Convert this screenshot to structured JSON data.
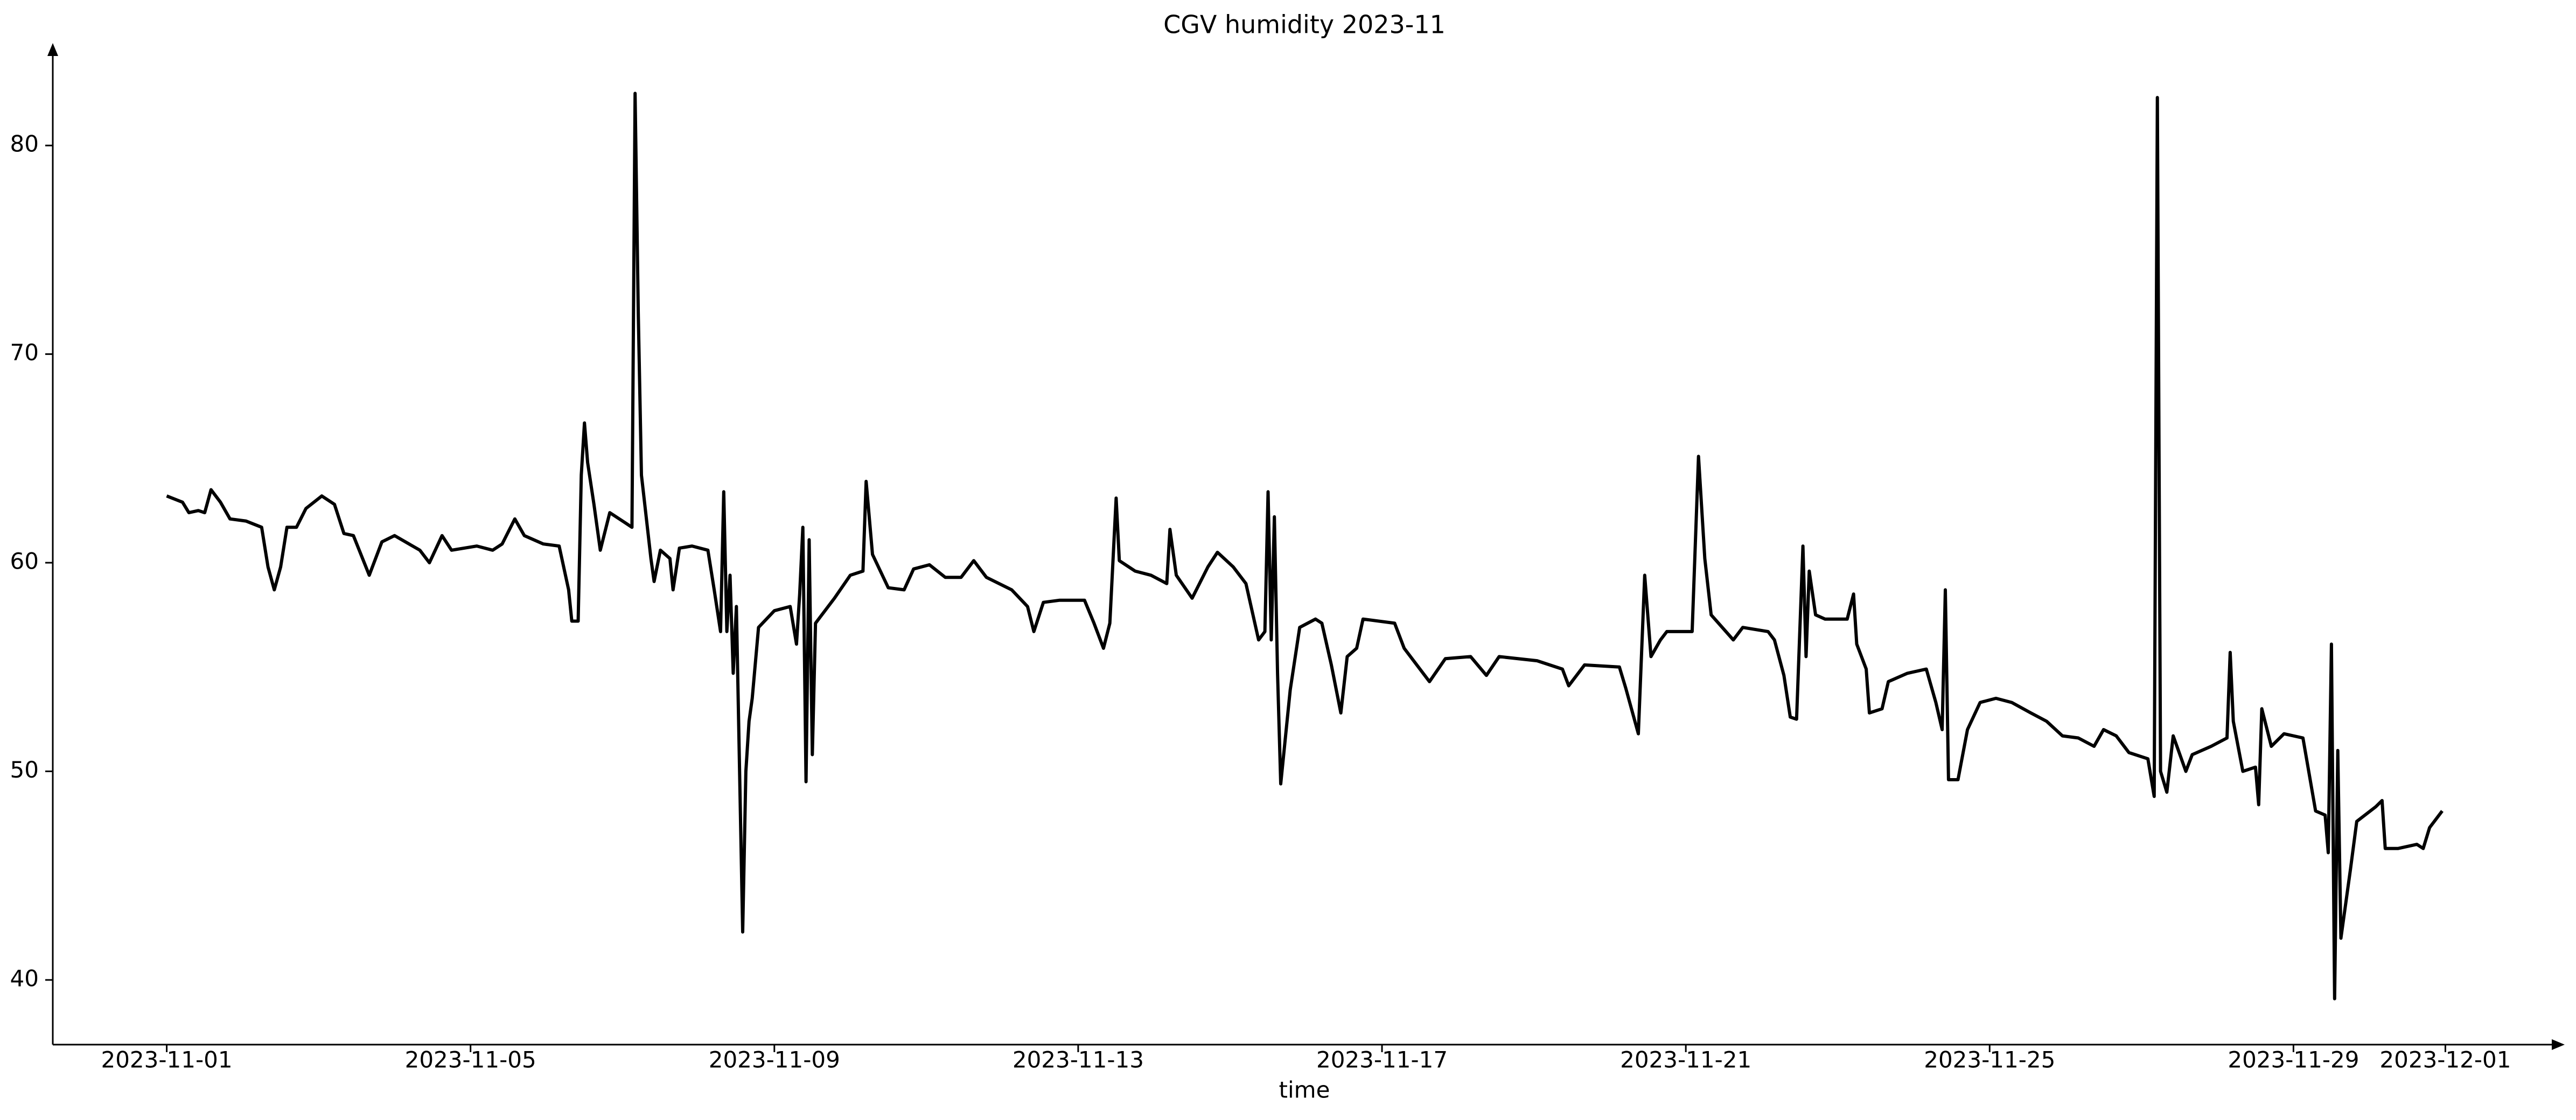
{
  "chart_data": {
    "type": "line",
    "title": "CGV humidity 2023-11",
    "x_label": "time",
    "color": "#000000",
    "xlim": [
      "2023-10-30 12:00",
      "2023-12-02 12:00"
    ],
    "ylim": [
      36.9,
      84.6
    ],
    "xticks": [
      "2023-11-01",
      "2023-11-05",
      "2023-11-09",
      "2023-11-13",
      "2023-11-17",
      "2023-11-21",
      "2023-11-25",
      "2023-11-29",
      "2023-12-01"
    ],
    "yticks": [
      40,
      50,
      60,
      70,
      80
    ],
    "grid": false,
    "x": [
      "2023-11-01 00:00",
      "2023-11-01 05:00",
      "2023-11-01 07:00",
      "2023-11-01 10:00",
      "2023-11-01 12:00",
      "2023-11-01 14:00",
      "2023-11-01 17:00",
      "2023-11-01 20:00",
      "2023-11-02 01:00",
      "2023-11-02 06:00",
      "2023-11-02 08:00",
      "2023-11-02 10:00",
      "2023-11-02 12:00",
      "2023-11-02 14:00",
      "2023-11-02 17:00",
      "2023-11-02 20:00",
      "2023-11-03 01:00",
      "2023-11-03 05:00",
      "2023-11-03 08:00",
      "2023-11-03 11:00",
      "2023-11-03 16:00",
      "2023-11-03 20:00",
      "2023-11-04 00:00",
      "2023-11-04 08:00",
      "2023-11-04 11:00",
      "2023-11-04 15:00",
      "2023-11-04 18:00",
      "2023-11-05 02:00",
      "2023-11-05 07:00",
      "2023-11-05 10:00",
      "2023-11-05 14:00",
      "2023-11-05 17:00",
      "2023-11-05 23:00",
      "2023-11-06 04:00",
      "2023-11-06 07:00",
      "2023-11-06 08:00",
      "2023-11-06 10:00",
      "2023-11-06 11:00",
      "2023-11-06 12:00",
      "2023-11-06 13:00",
      "2023-11-06 15:00",
      "2023-11-06 17:00",
      "2023-11-06 20:00",
      "2023-11-07 01:00",
      "2023-11-07 03:00",
      "2023-11-07 04:00",
      "2023-11-07 05:00",
      "2023-11-07 06:00",
      "2023-11-07 09:00",
      "2023-11-07 10:00",
      "2023-11-07 12:00",
      "2023-11-07 15:00",
      "2023-11-07 16:00",
      "2023-11-07 18:00",
      "2023-11-07 22:00",
      "2023-11-08 03:00",
      "2023-11-08 05:00",
      "2023-11-08 07:00",
      "2023-11-08 08:00",
      "2023-11-08 09:00",
      "2023-11-08 10:00",
      "2023-11-08 11:00",
      "2023-11-08 12:00",
      "2023-11-08 14:00",
      "2023-11-08 15:00",
      "2023-11-08 16:00",
      "2023-11-08 17:00",
      "2023-11-08 19:00",
      "2023-11-09 00:00",
      "2023-11-09 05:00",
      "2023-11-09 07:00",
      "2023-11-09 08:00",
      "2023-11-09 09:00",
      "2023-11-09 10:00",
      "2023-11-09 11:00",
      "2023-11-09 12:00",
      "2023-11-09 13:00",
      "2023-11-09 15:00",
      "2023-11-09 19:00",
      "2023-11-10 00:00",
      "2023-11-10 04:00",
      "2023-11-10 05:00",
      "2023-11-10 07:00",
      "2023-11-10 12:00",
      "2023-11-10 17:00",
      "2023-11-10 20:00",
      "2023-11-11 01:00",
      "2023-11-11 06:00",
      "2023-11-11 11:00",
      "2023-11-11 15:00",
      "2023-11-11 19:00",
      "2023-11-12 03:00",
      "2023-11-12 08:00",
      "2023-11-12 10:00",
      "2023-11-12 13:00",
      "2023-11-12 18:00",
      "2023-11-13 02:00",
      "2023-11-13 05:00",
      "2023-11-13 08:00",
      "2023-11-13 10:00",
      "2023-11-13 12:00",
      "2023-11-13 13:00",
      "2023-11-13 18:00",
      "2023-11-13 23:00",
      "2023-11-14 04:00",
      "2023-11-14 05:00",
      "2023-11-14 07:00",
      "2023-11-14 12:00",
      "2023-11-14 17:00",
      "2023-11-14 20:00",
      "2023-11-15 01:00",
      "2023-11-15 05:00",
      "2023-11-15 09:00",
      "2023-11-15 11:00",
      "2023-11-15 12:00",
      "2023-11-15 13:00",
      "2023-11-15 14:00",
      "2023-11-15 15:00",
      "2023-11-15 16:00",
      "2023-11-15 19:00",
      "2023-11-15 22:00",
      "2023-11-16 03:00",
      "2023-11-16 05:00",
      "2023-11-16 08:00",
      "2023-11-16 11:00",
      "2023-11-16 13:00",
      "2023-11-16 16:00",
      "2023-11-16 18:00",
      "2023-11-17 04:00",
      "2023-11-17 07:00",
      "2023-11-17 15:00",
      "2023-11-17 20:00",
      "2023-11-18 04:00",
      "2023-11-18 09:00",
      "2023-11-18 13:00",
      "2023-11-19 01:00",
      "2023-11-19 09:00",
      "2023-11-19 11:00",
      "2023-11-19 16:00",
      "2023-11-20 03:00",
      "2023-11-20 05:00",
      "2023-11-20 09:00",
      "2023-11-20 11:00",
      "2023-11-20 13:00",
      "2023-11-20 16:00",
      "2023-11-20 18:00",
      "2023-11-21 02:00",
      "2023-11-21 04:00",
      "2023-11-21 06:00",
      "2023-11-21 08:00",
      "2023-11-21 15:00",
      "2023-11-21 18:00",
      "2023-11-22 02:00",
      "2023-11-22 04:00",
      "2023-11-22 07:00",
      "2023-11-22 09:00",
      "2023-11-22 11:00",
      "2023-11-22 13:00",
      "2023-11-22 14:00",
      "2023-11-22 15:00",
      "2023-11-22 17:00",
      "2023-11-22 20:00",
      "2023-11-23 03:00",
      "2023-11-23 05:00",
      "2023-11-23 06:00",
      "2023-11-23 09:00",
      "2023-11-23 10:00",
      "2023-11-23 14:00",
      "2023-11-23 16:00",
      "2023-11-23 22:00",
      "2023-11-24 04:00",
      "2023-11-24 07:00",
      "2023-11-24 09:00",
      "2023-11-24 10:00",
      "2023-11-24 11:00",
      "2023-11-24 14:00",
      "2023-11-24 17:00",
      "2023-11-24 21:00",
      "2023-11-25 02:00",
      "2023-11-25 07:00",
      "2023-11-25 13:00",
      "2023-11-25 18:00",
      "2023-11-25 23:00",
      "2023-11-26 04:00",
      "2023-11-26 09:00",
      "2023-11-26 12:00",
      "2023-11-26 16:00",
      "2023-11-26 20:00",
      "2023-11-27 02:00",
      "2023-11-27 04:00",
      "2023-11-27 05:00",
      "2023-11-27 06:00",
      "2023-11-27 08:00",
      "2023-11-27 10:00",
      "2023-11-27 14:00",
      "2023-11-27 16:00",
      "2023-11-27 22:00",
      "2023-11-28 03:00",
      "2023-11-28 04:00",
      "2023-11-28 05:00",
      "2023-11-28 08:00",
      "2023-11-28 12:00",
      "2023-11-28 13:00",
      "2023-11-28 14:00",
      "2023-11-28 17:00",
      "2023-11-28 21:00",
      "2023-11-29 03:00",
      "2023-11-29 07:00",
      "2023-11-29 10:00",
      "2023-11-29 11:00",
      "2023-11-29 12:00",
      "2023-11-29 13:00",
      "2023-11-29 14:00",
      "2023-11-29 15:00",
      "2023-11-29 18:00",
      "2023-11-29 20:00",
      "2023-11-30 02:00",
      "2023-11-30 04:00",
      "2023-11-30 05:00",
      "2023-11-30 09:00",
      "2023-11-30 15:00",
      "2023-11-30 17:00",
      "2023-11-30 19:00",
      "2023-11-30 23:00"
    ],
    "values": [
      63.2,
      62.9,
      62.4,
      62.5,
      62.4,
      63.5,
      62.9,
      62.1,
      62.0,
      61.7,
      59.8,
      58.7,
      59.8,
      61.7,
      61.7,
      62.6,
      63.2,
      62.8,
      61.4,
      61.3,
      59.4,
      61.0,
      61.3,
      60.6,
      60.0,
      61.3,
      60.6,
      60.8,
      60.6,
      60.9,
      62.1,
      61.3,
      60.9,
      60.8,
      58.7,
      57.2,
      57.2,
      64.2,
      66.7,
      64.8,
      62.8,
      60.6,
      62.4,
      61.9,
      61.7,
      82.5,
      72.0,
      64.2,
      60.2,
      59.1,
      60.6,
      60.2,
      58.7,
      60.7,
      60.8,
      60.6,
      58.7,
      56.7,
      63.4,
      56.7,
      59.4,
      54.7,
      57.9,
      42.3,
      50.0,
      52.4,
      53.5,
      56.9,
      57.7,
      57.9,
      56.1,
      58.5,
      61.7,
      49.5,
      61.1,
      50.8,
      57.1,
      57.5,
      58.3,
      59.4,
      59.6,
      63.9,
      60.4,
      58.8,
      58.7,
      59.7,
      59.9,
      59.3,
      59.3,
      60.1,
      59.3,
      58.7,
      57.9,
      56.7,
      58.1,
      58.2,
      58.2,
      57.1,
      55.9,
      57.1,
      63.1,
      60.1,
      59.6,
      59.4,
      59.0,
      61.6,
      59.4,
      58.3,
      59.8,
      60.5,
      59.8,
      59.0,
      56.3,
      56.7,
      63.4,
      56.3,
      62.2,
      54.7,
      49.4,
      53.9,
      56.9,
      57.3,
      57.1,
      55.1,
      52.8,
      55.5,
      55.9,
      57.3,
      57.1,
      55.9,
      54.3,
      55.4,
      55.5,
      54.6,
      55.5,
      55.3,
      54.9,
      54.1,
      55.1,
      55.0,
      54.0,
      51.8,
      59.4,
      55.5,
      56.3,
      56.7,
      56.7,
      65.1,
      60.2,
      57.5,
      56.3,
      56.9,
      56.7,
      56.3,
      54.6,
      52.6,
      52.5,
      60.8,
      55.5,
      59.6,
      57.5,
      57.3,
      57.3,
      58.5,
      56.1,
      54.9,
      52.8,
      53.0,
      54.3,
      54.7,
      54.9,
      53.3,
      52.0,
      58.7,
      49.6,
      49.6,
      52.0,
      53.3,
      53.5,
      53.3,
      52.8,
      52.4,
      51.7,
      51.6,
      51.2,
      52.0,
      51.7,
      50.9,
      50.6,
      48.8,
      82.3,
      50.0,
      49.0,
      51.7,
      50.0,
      50.8,
      51.2,
      51.6,
      55.7,
      52.4,
      50.0,
      50.2,
      48.4,
      53.0,
      51.2,
      51.8,
      51.6,
      48.1,
      47.9,
      46.1,
      56.1,
      39.1,
      51.0,
      42.0,
      45.3,
      47.6,
      48.3,
      48.6,
      46.3,
      46.3,
      46.5,
      46.3,
      47.3,
      48.1
    ]
  }
}
